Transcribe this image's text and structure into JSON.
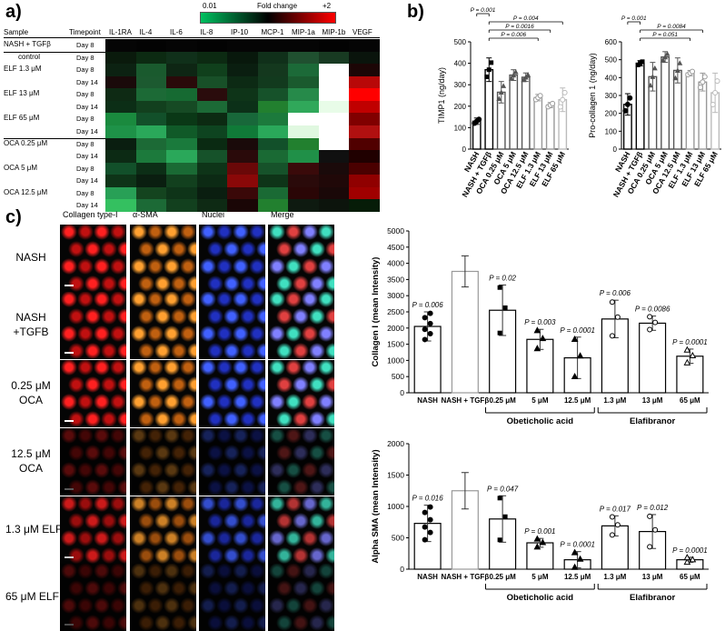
{
  "panel_a": {
    "letter": "a)",
    "colorbar": {
      "label": "Fold change",
      "min_label": "0.01",
      "max_label": "+2",
      "colors": [
        "#00c060",
        "#000000",
        "#ff0000"
      ]
    },
    "col_headers": [
      "Sample",
      "Timepoint",
      "IL-1RA",
      "IL-4",
      "IL-6",
      "IL-8",
      "IP-10",
      "MCP-1",
      "MIP-1a",
      "MIP-1b",
      "VEGF"
    ],
    "rows": [
      {
        "sample": "NASH + TGFβ",
        "sample2": "control",
        "timepoint": "Day 8"
      },
      {
        "sample": "",
        "timepoint": "Day 8"
      },
      {
        "sample": "ELF 1.3 μM",
        "timepoint": "Day 8"
      },
      {
        "sample": "",
        "timepoint": "Day 14"
      },
      {
        "sample": "ELF 13 μM",
        "timepoint": "Day 8"
      },
      {
        "sample": "",
        "timepoint": "Day 14"
      },
      {
        "sample": "ELF 65 μM",
        "timepoint": "Day 8"
      },
      {
        "sample": "",
        "timepoint": "Day 14"
      },
      {
        "sample": "OCA 0.25 μM",
        "timepoint": "Day 8"
      },
      {
        "sample": "",
        "timepoint": "Day 14"
      },
      {
        "sample": "OCA 5 μM",
        "timepoint": "Day 8"
      },
      {
        "sample": "",
        "timepoint": "Day 14"
      },
      {
        "sample": "OCA 12.5 μM",
        "timepoint": "Day 8"
      },
      {
        "sample": "",
        "timepoint": "Day 14"
      }
    ],
    "heatmap_colors": [
      [
        "#050505",
        "#030303",
        "#050505",
        "#030303",
        "#050505",
        "#050505",
        "#050505",
        "#030303",
        "#050505"
      ],
      [
        "#0a1a0c",
        "#0c2a12",
        "#10301a",
        "#0c2a12",
        "#08180c",
        "#10301a",
        "#205030",
        "#183a22",
        "#0a140c"
      ],
      [
        "#0c2212",
        "#1a5a2e",
        "#0e2614",
        "#10401c",
        "#0a1e10",
        "#14381e",
        "#1c6a38",
        "#ffffff",
        "#1c0606"
      ],
      [
        "#1a0a0a",
        "#1c5a30",
        "#2a0a0a",
        "#185028",
        "#0c2a14",
        "#123a1e",
        "#1a5a2e",
        "#ffffff",
        "#b80808"
      ],
      [
        "#0e2a14",
        "#1c6a36",
        "#166a32",
        "#2a0c0c",
        "#0e3418",
        "#16522a",
        "#268a4a",
        "#ffffff",
        "#ff0000"
      ],
      [
        "#0c2e16",
        "#12401e",
        "#164a24",
        "#1c6a36",
        "#0c3018",
        "#22802f",
        "#30a85a",
        "#e8fce8",
        "#c00000"
      ],
      [
        "#1a8a3e",
        "#12502a",
        "#0a3816",
        "#0c2a12",
        "#18683a",
        "#1c7a3c",
        "#ffffff",
        "#ffffff",
        "#800000"
      ],
      [
        "#1e9248",
        "#2aa85a",
        "#105a28",
        "#0e4420",
        "#107a38",
        "#2aa85a",
        "#e0f8e0",
        "#ffffff",
        "#b01010"
      ],
      [
        "#0a1e10",
        "#1c6a36",
        "#1a7a3c",
        "#0a2a12",
        "#1a0a0a",
        "#12502a",
        "#22802f",
        "#ffffff",
        "#500000"
      ],
      [
        "#0c2a14",
        "#1c7a3c",
        "#2aa85a",
        "#16522a",
        "#2a0a0a",
        "#1a6a34",
        "#209048",
        "#101010",
        "#200000"
      ],
      [
        "#12502a",
        "#0c2e16",
        "#1a6a34",
        "#0e3418",
        "#6a0808",
        "#16522a",
        "#3a0a0a",
        "#1a0a0a",
        "#4a0000"
      ],
      [
        "#0e3418",
        "#0a1e10",
        "#12401e",
        "#0c2a14",
        "#8a0808",
        "#0e3418",
        "#2a0a0a",
        "#200808",
        "#900000"
      ],
      [
        "#28a056",
        "#14441f",
        "#0e3418",
        "#0a1e10",
        "#3a0808",
        "#1a6a34",
        "#2a0606",
        "#1a0808",
        "#a00000"
      ],
      [
        "#34c060",
        "#1c6a36",
        "#12401e",
        "#0e2a14",
        "#1a0606",
        "#22802f",
        "#0e1a10",
        "#0c140c",
        "#061c08"
      ]
    ]
  },
  "panel_b": {
    "letter": "b)",
    "chart_data": [
      {
        "type": "bar",
        "ylabel": "TIMP1 (ng/day)",
        "ylim": [
          0,
          500
        ],
        "yticks": [
          "0",
          "100",
          "200",
          "300",
          "400",
          "500"
        ],
        "categories": [
          "NASH",
          "NASH + TGFβ",
          "OCA 0.25 μM",
          "OCA 5 μM",
          "OCA 12.5 μM",
          "ELF 1.3 μM",
          "ELF 13 μM",
          "ELF 65 μM"
        ],
        "values": [
          130,
          370,
          265,
          345,
          335,
          240,
          205,
          230
        ],
        "errors": [
          15,
          55,
          50,
          25,
          20,
          15,
          12,
          55
        ],
        "pvalues": [
          "P = 0.001",
          "P = 0.004",
          "P = 0.0016",
          "P = 0.006"
        ]
      },
      {
        "type": "bar",
        "ylabel": "Pro-collagen 1 (ng/day)",
        "ylim": [
          0,
          600
        ],
        "yticks": [
          "0",
          "100",
          "200",
          "300",
          "400",
          "500",
          "600"
        ],
        "categories": [
          "NASH",
          "NASH + TGFβ",
          "OCA 0.25 μM",
          "OCA 5 μM",
          "OCA 12.5 μM",
          "ELF 1.3 μM",
          "ELF 13 μM",
          "ELF 65 μM"
        ],
        "values": [
          250,
          480,
          405,
          515,
          440,
          425,
          375,
          315
        ],
        "errors": [
          60,
          15,
          80,
          30,
          70,
          15,
          50,
          110
        ],
        "pvalues": [
          "P = 0.001",
          "P = 0.0084",
          "P = 0.051"
        ]
      }
    ]
  },
  "panel_c": {
    "letter": "c)",
    "col_headers": [
      "Collagen type-I",
      "α-SMA",
      "Nuclei",
      "Merge"
    ],
    "row_labels": [
      [
        "NASH"
      ],
      [
        "NASH",
        "+TGFB"
      ],
      [
        "0.25 μM",
        "OCA"
      ],
      [
        "12.5 μM",
        "OCA"
      ],
      [
        "1.3 μM ELF"
      ],
      [
        "65 μM ELF"
      ]
    ],
    "tile_brightness": [
      1.0,
      1.0,
      1.0,
      0.35,
      0.8,
      0.3
    ],
    "group_labels": {
      "oca": "Obeticholic acid",
      "elf": "Elafibranor"
    },
    "chart_data": [
      {
        "type": "bar",
        "ylabel": "Collagen I (mean Intensity)",
        "ylim": [
          0,
          5000
        ],
        "yticks": [
          "0",
          "500",
          "1000",
          "1500",
          "2000",
          "2500",
          "3000",
          "3500",
          "4000",
          "4500",
          "5000"
        ],
        "categories": [
          "NASH",
          "NASH + TGFβ",
          "0.25 μM",
          "5 μM",
          "12.5 μM",
          "1.3 μM",
          "13 μM",
          "65 μM"
        ],
        "values": [
          2050,
          3750,
          2550,
          1650,
          1080,
          2280,
          2150,
          1130
        ],
        "errors": [
          450,
          480,
          780,
          310,
          640,
          580,
          220,
          220
        ],
        "pvalues": [
          "P = 0.006",
          "",
          "P = 0.02",
          "P = 0.003",
          "P = 0.0001",
          "P = 0.006",
          "P = 0.0086",
          "P = 0.0001"
        ]
      },
      {
        "type": "bar",
        "ylabel": "Alpha SMA (mean Intensity)",
        "ylim": [
          0,
          2000
        ],
        "yticks": [
          "0",
          "500",
          "1000",
          "1500",
          "2000"
        ],
        "categories": [
          "NASH",
          "NASH + TGFβ",
          "0.25 μM",
          "5 μM",
          "12.5 μM",
          "1.3 μM",
          "13 μM",
          "65 μM"
        ],
        "values": [
          730,
          1250,
          800,
          420,
          150,
          690,
          600,
          150
        ],
        "errors": [
          290,
          290,
          370,
          70,
          130,
          160,
          270,
          40
        ],
        "pvalues": [
          "P = 0.016",
          "",
          "P = 0.047",
          "P = 0.001",
          "P = 0.0001",
          "P = 0.017",
          "P = 0.012",
          "P = 0.0001"
        ]
      }
    ]
  }
}
